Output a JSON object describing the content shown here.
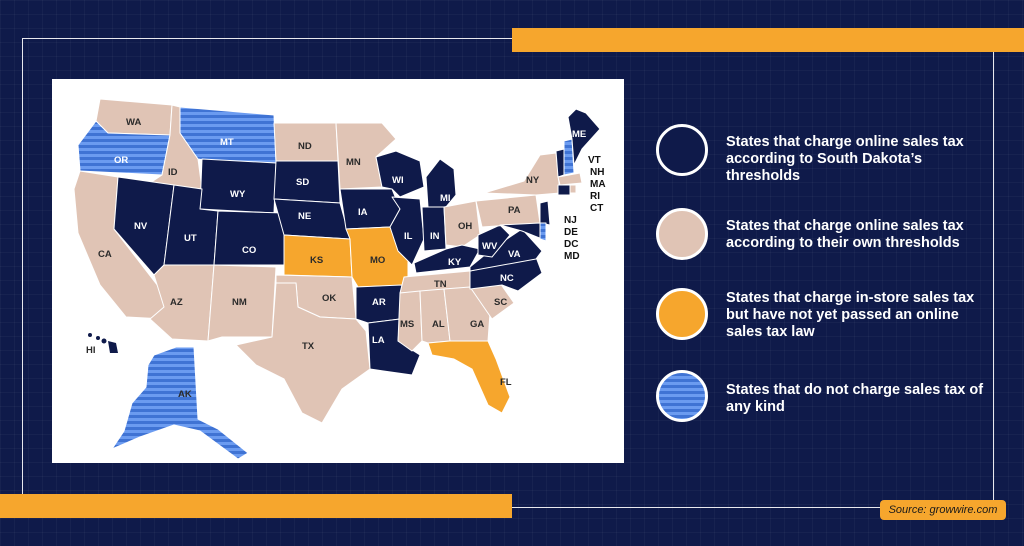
{
  "colors": {
    "background": "#0f1a4a",
    "accent": "#f6a62d",
    "sd_threshold": "#0f1a4a",
    "own_threshold": "#e0c4b5",
    "in_store_only": "#f6a62d",
    "no_sales_tax": "#3f73d4"
  },
  "legend": [
    {
      "label": "States that charge online sales tax according to South Dakota’s thresholds",
      "color": "#0f1a4a",
      "pattern": "solid"
    },
    {
      "label": "States that charge online sales tax according to their own thresholds",
      "color": "#e0c4b5",
      "pattern": "solid"
    },
    {
      "label": "States that charge in-store sales tax but have not yet passed an online sales tax law",
      "color": "#f6a62d",
      "pattern": "solid"
    },
    {
      "label": "States that do not charge sales tax of any kind",
      "color": "#3f73d4",
      "pattern": "striped"
    }
  ],
  "states": {
    "WA": "WA",
    "OR": "OR",
    "CA": "CA",
    "ID": "ID",
    "NV": "NV",
    "MT": "MT",
    "WY": "WY",
    "UT": "UT",
    "AZ": "AZ",
    "CO": "CO",
    "NM": "NM",
    "ND": "ND",
    "SD": "SD",
    "NE": "NE",
    "KS": "KS",
    "OK": "OK",
    "TX": "TX",
    "MN": "MN",
    "IA": "IA",
    "MO": "MO",
    "AR": "AR",
    "LA": "LA",
    "WI": "WI",
    "IL": "IL",
    "MI": "MI",
    "IN": "IN",
    "OH": "OH",
    "KY": "KY",
    "TN": "TN",
    "MS": "MS",
    "AL": "AL",
    "GA": "GA",
    "FL": "FL",
    "SC": "SC",
    "NC": "NC",
    "VA": "VA",
    "WV": "WV",
    "PA": "PA",
    "NY": "NY",
    "ME": "ME",
    "AK": "AK",
    "HI": "HI"
  },
  "northeast_labels": [
    "VT",
    "NH",
    "MA",
    "RI",
    "CT",
    "NJ",
    "DE",
    "DC",
    "MD"
  ],
  "source": "Source: growwire.com"
}
